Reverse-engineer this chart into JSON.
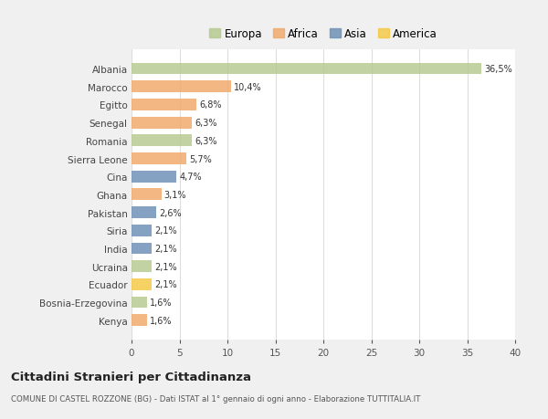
{
  "countries": [
    "Albania",
    "Marocco",
    "Egitto",
    "Senegal",
    "Romania",
    "Sierra Leone",
    "Cina",
    "Ghana",
    "Pakistan",
    "Siria",
    "India",
    "Ucraina",
    "Ecuador",
    "Bosnia-Erzegovina",
    "Kenya"
  ],
  "values": [
    36.5,
    10.4,
    6.8,
    6.3,
    6.3,
    5.7,
    4.7,
    3.1,
    2.6,
    2.1,
    2.1,
    2.1,
    2.1,
    1.6,
    1.6
  ],
  "labels": [
    "36,5%",
    "10,4%",
    "6,8%",
    "6,3%",
    "6,3%",
    "5,7%",
    "4,7%",
    "3,1%",
    "2,6%",
    "2,1%",
    "2,1%",
    "2,1%",
    "2,1%",
    "1,6%",
    "1,6%"
  ],
  "colors": [
    "#b5c98e",
    "#f0a868",
    "#f0a868",
    "#f0a868",
    "#b5c98e",
    "#f0a868",
    "#6b8eb5",
    "#f0a868",
    "#6b8eb5",
    "#6b8eb5",
    "#6b8eb5",
    "#b5c98e",
    "#f5c842",
    "#b5c98e",
    "#f0a868"
  ],
  "legend": {
    "Europa": "#b5c98e",
    "Africa": "#f0a868",
    "Asia": "#6b8eb5",
    "America": "#f5c842"
  },
  "xlim": [
    0,
    40
  ],
  "xticks": [
    0,
    5,
    10,
    15,
    20,
    25,
    30,
    35,
    40
  ],
  "title": "Cittadini Stranieri per Cittadinanza",
  "subtitle": "COMUNE DI CASTEL ROZZONE (BG) - Dati ISTAT al 1° gennaio di ogni anno - Elaborazione TUTTITALIA.IT",
  "bg_color": "#f0f0f0",
  "plot_bg_color": "#ffffff",
  "grid_color": "#dddddd",
  "bar_height": 0.65,
  "label_fontsize": 7.0,
  "ytick_fontsize": 7.5,
  "xtick_fontsize": 7.5,
  "legend_fontsize": 8.5,
  "title_fontsize": 9.5,
  "subtitle_fontsize": 6.2
}
